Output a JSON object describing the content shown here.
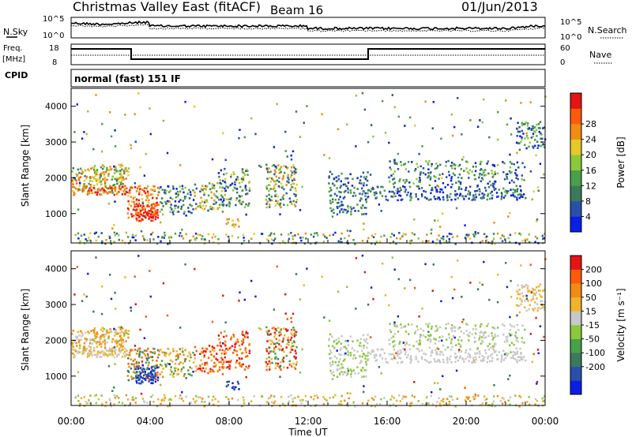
{
  "header": {
    "title": "Christmas Valley East (fitACF)",
    "beam": "Beam 16",
    "date": "01/Jun/2013"
  },
  "left_labels": {
    "nsky": "N.Sky",
    "freq_line1": "Freq.",
    "freq_line2": "[MHz]",
    "cpid": "CPID"
  },
  "right_labels": {
    "nsearch": "N.Search",
    "nave": "Nave"
  },
  "cpid_text": "normal (fast) 151 IF",
  "noise_panel": {
    "left_ticks": [
      "10^5",
      "10^0"
    ],
    "right_ticks": [
      "10^5",
      "10^0"
    ]
  },
  "freq_panel": {
    "left_ticks": [
      "18",
      "8"
    ],
    "right_ticks": [
      "60",
      "0"
    ]
  },
  "x_axis": {
    "label": "Time UT",
    "ticks": [
      "00:00",
      "04:00",
      "08:00",
      "12:00",
      "16:00",
      "20:00",
      "00:00"
    ]
  },
  "chart_data": [
    {
      "type": "heatmap",
      "name_key": "power",
      "ylabel": "Slant Range [km]",
      "xlabel": "Time UT",
      "y_ticks": [
        "1000",
        "2000",
        "3000",
        "4000"
      ],
      "ylim": [
        180,
        4500
      ],
      "xlim_hours": [
        0,
        24
      ],
      "colorbar": {
        "label": "Power [dB]",
        "ticks": [
          "4",
          "8",
          "12",
          "16",
          "20",
          "24",
          "28"
        ],
        "colors": [
          "#0a1ee6",
          "#2850aa",
          "#3a7a5a",
          "#48a048",
          "#8cc83c",
          "#e6c828",
          "#f08c14",
          "#ff5a0a",
          "#e61414"
        ]
      }
    },
    {
      "type": "heatmap",
      "name_key": "velocity",
      "ylabel": "Slant Range [km]",
      "xlabel": "Time UT",
      "y_ticks": [
        "1000",
        "2000",
        "3000",
        "4000"
      ],
      "ylim": [
        180,
        4500
      ],
      "xlim_hours": [
        0,
        24
      ],
      "colorbar": {
        "label": "Velocity [m s⁻¹]",
        "ticks": [
          "200",
          "100",
          "50",
          "15",
          "-15",
          "-50",
          "-100",
          "-200"
        ],
        "colors": [
          "#0a1ee6",
          "#2850aa",
          "#3a7a5a",
          "#48a048",
          "#8cc83c",
          "#c8c8c8",
          "#f0b428",
          "#f08c14",
          "#ff5a0a",
          "#e61414"
        ]
      }
    }
  ]
}
